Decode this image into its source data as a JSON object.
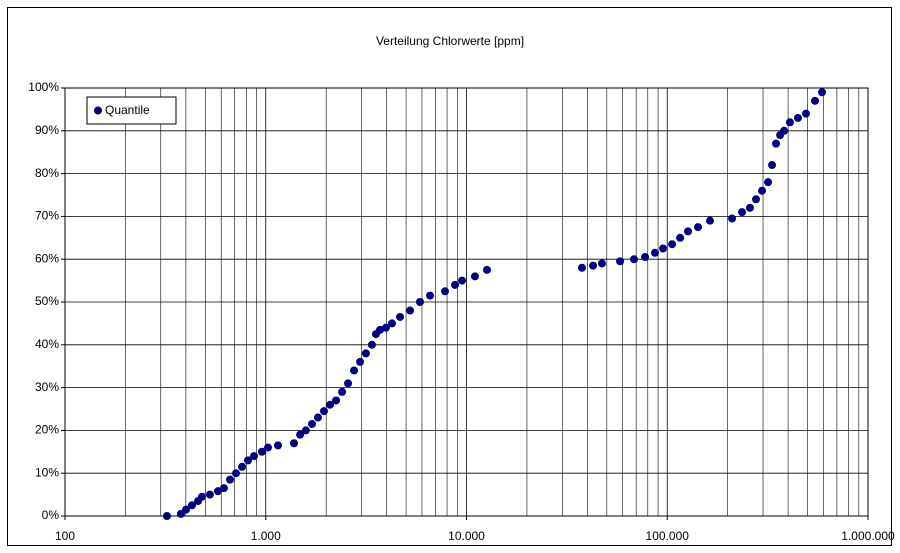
{
  "chart_data": {
    "type": "scatter",
    "title": "Verteilung Chlorwerte [ppm]",
    "log_x": true,
    "grid": true,
    "legend": "top-left",
    "xlim": [
      100,
      1000000
    ],
    "xticks": [
      100,
      {
        "value": 1000,
        "label": "1.000"
      },
      {
        "value": 10000,
        "label": "10.000"
      },
      {
        "value": 100000,
        "label": "100.000"
      },
      {
        "value": 1000000,
        "label": "1.000.000"
      }
    ],
    "ylim": [
      0,
      100
    ],
    "yticks": [
      {
        "value": 0,
        "label": "0%"
      },
      {
        "value": 10,
        "label": "10%"
      },
      {
        "value": 20,
        "label": "20%"
      },
      {
        "value": 30,
        "label": "30%"
      },
      {
        "value": 40,
        "label": "40%"
      },
      {
        "value": 50,
        "label": "50%"
      },
      {
        "value": 60,
        "label": "60%"
      },
      {
        "value": 70,
        "label": "70%"
      },
      {
        "value": 80,
        "label": "80%"
      },
      {
        "value": 90,
        "label": "90%"
      },
      {
        "value": 100,
        "label": "100%"
      }
    ],
    "series": [
      {
        "name": "Quantile",
        "color": "#000080",
        "x": [
          322,
          378,
          401,
          429,
          460,
          481,
          527,
          578,
          619,
          664,
          711,
          762,
          816,
          874,
          957,
          1026,
          1151,
          1383,
          1483,
          1585,
          1700,
          1820,
          1950,
          2090,
          2240,
          2400,
          2570,
          2754,
          2950,
          3155,
          3380,
          3540,
          3710,
          3970,
          4255,
          4665,
          5235,
          5865,
          6580,
          7815,
          8770,
          9500,
          11020,
          12650,
          37600,
          42700,
          47300,
          58200,
          68300,
          77500,
          86900,
          95300,
          105700,
          115900,
          126900,
          142300,
          163300,
          210300,
          235800,
          258300,
          276800,
          296600,
          317800,
          332700,
          348300,
          364800,
          381900,
          408400,
          447900,
          491000,
          544400,
          590200
        ],
        "values": [
          0,
          0.5,
          1.5,
          2.5,
          3.5,
          4.5,
          5,
          5.8,
          6.5,
          8.5,
          10,
          11.5,
          13,
          14,
          15,
          16,
          16.5,
          17,
          19,
          20,
          21.5,
          23,
          24.5,
          26,
          27,
          29,
          31,
          34,
          36,
          38,
          40,
          42.5,
          43.5,
          44,
          45,
          46.5,
          48,
          50,
          51.5,
          52.5,
          54,
          55,
          56,
          57.5,
          58,
          58.5,
          59,
          59.5,
          60,
          60.5,
          61.5,
          62.5,
          63.5,
          65,
          66.5,
          67.5,
          69,
          69.5,
          71,
          72,
          74,
          76,
          78,
          82,
          87,
          89,
          90,
          92,
          93,
          94,
          97,
          99
        ]
      }
    ]
  }
}
